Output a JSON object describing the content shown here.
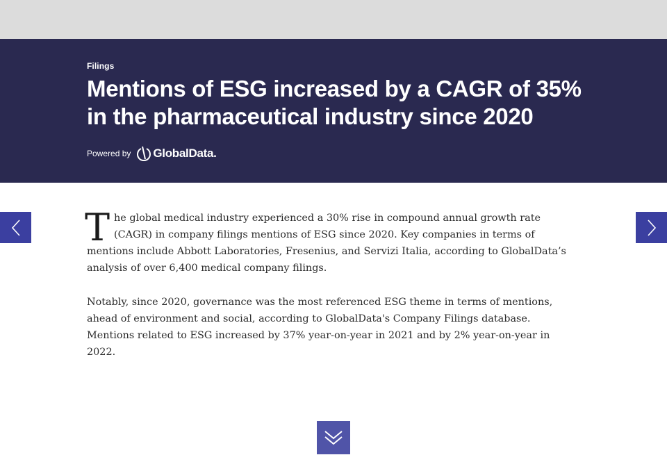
{
  "header": {
    "category": "Filings",
    "headline": "Mentions of ESG increased by a CAGR of 35% in the pharmaceutical industry since 2020",
    "powered_by": "Powered by",
    "logo_text": "GlobalData."
  },
  "article": {
    "dropcap": "T",
    "paragraph1": "he global medical industry experienced a 30% rise in compound annual growth rate (CAGR) in company filings mentions of ESG since 2020. Key companies in terms of mentions include Abbott Laboratories, Fresenius, and Servizi Italia, according to GlobalData’s analysis of over 6,400 medical company filings.",
    "paragraph2": "Notably, since 2020, governance was the most referenced ESG theme in terms of mentions, ahead of environment and social, according to GlobalData's Company Filings database. Mentions related to ESG increased by 37% year-on-year in 2021 and by 2% year-on-year in 2022."
  },
  "navigation": {
    "prev_icon": "chevron-left-icon",
    "next_icon": "chevron-right-icon",
    "scroll_icon": "double-chevron-down-icon"
  },
  "colors": {
    "hero_bg": "#2a2950",
    "nav_bg": "#3b3fa0",
    "scroll_bg": "#5054a8",
    "top_strip": "#dcdcdc"
  }
}
